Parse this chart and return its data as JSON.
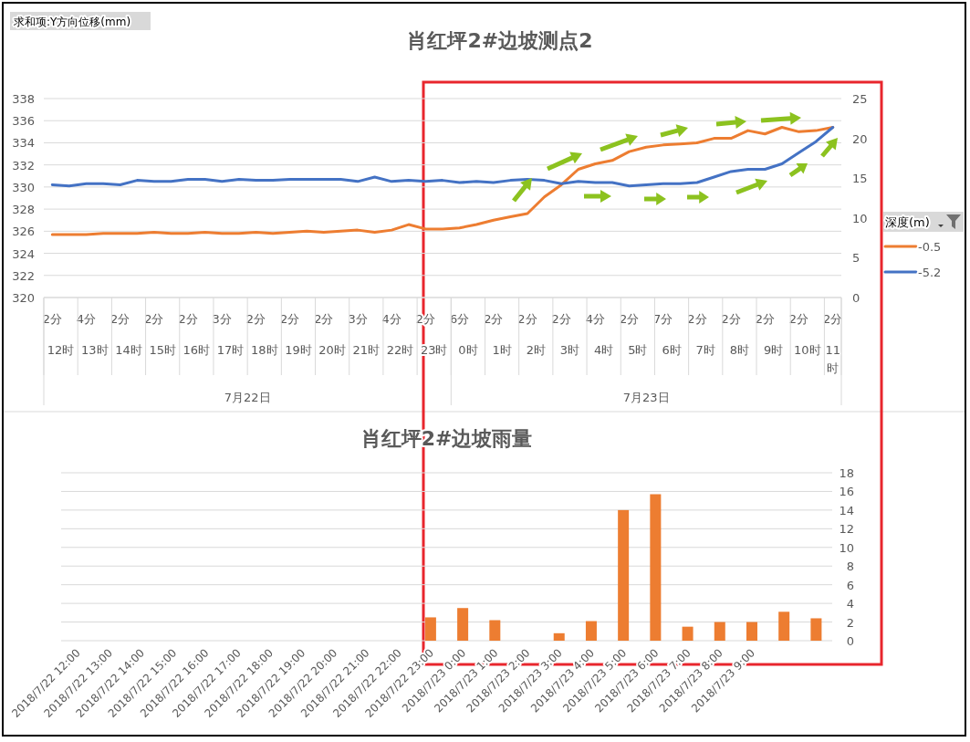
{
  "chart_data": [
    {
      "type": "line",
      "title": "肖红坪2#边坡测点2",
      "ylabel": "求和项:Y方向位移(mm)",
      "legend_title": "深度(m)",
      "legend": "right",
      "grid": "y",
      "categories": [
        "2分",
        null,
        "4分",
        null,
        "2分",
        null,
        "2分",
        null,
        "2分",
        null,
        "3分",
        null,
        "2分",
        null,
        "2分",
        null,
        "2分",
        null,
        "3分",
        null,
        "4分",
        null,
        "2分",
        null,
        "6分",
        null,
        "2分",
        null,
        "2分",
        null,
        "2分",
        null,
        "4分",
        null,
        "2分",
        null,
        "7分",
        null,
        "2分",
        null,
        "2分",
        null,
        "2分",
        null,
        "2分",
        null,
        "2分"
      ],
      "annotations": [
        "12时",
        "13时",
        "14时",
        "15时",
        "16时",
        "17时",
        "18时",
        "19时",
        "20时",
        "21时",
        "22时",
        "23时",
        "0时",
        "1时",
        "2时",
        "3时",
        "4时",
        "5时",
        "6时",
        "7时",
        "8时",
        "9时",
        "10时",
        "11时",
        "7月22日",
        "7月23日"
      ],
      "ylim": [
        320,
        338
      ],
      "yticks": [
        320,
        322,
        324,
        326,
        328,
        330,
        332,
        334,
        336,
        338
      ],
      "y2lim": [
        0,
        25
      ],
      "y2ticks": [
        0,
        5,
        10,
        15,
        20,
        25
      ],
      "series": [
        {
          "name": "-0.5",
          "color": "#ed7d31",
          "values": [
            325.7,
            325.7,
            325.7,
            325.8,
            325.8,
            325.8,
            325.9,
            325.8,
            325.8,
            325.9,
            325.8,
            325.8,
            325.9,
            325.8,
            325.9,
            326.0,
            325.9,
            326.0,
            326.1,
            325.9,
            326.1,
            326.6,
            326.2,
            326.2,
            326.3,
            326.6,
            327.0,
            327.3,
            327.6,
            329.1,
            330.2,
            331.6,
            332.1,
            332.4,
            333.2,
            333.6,
            333.8,
            333.9,
            334.0,
            334.4,
            334.4,
            335.1,
            334.8,
            335.4,
            335.0,
            335.1,
            335.4
          ]
        },
        {
          "name": "-5.2",
          "color": "#4472c4",
          "values": [
            330.2,
            330.1,
            330.3,
            330.3,
            330.2,
            330.6,
            330.5,
            330.5,
            330.7,
            330.7,
            330.5,
            330.7,
            330.6,
            330.6,
            330.7,
            330.7,
            330.7,
            330.7,
            330.5,
            330.9,
            330.5,
            330.6,
            330.5,
            330.6,
            330.4,
            330.5,
            330.4,
            330.6,
            330.7,
            330.6,
            330.3,
            330.5,
            330.4,
            330.4,
            330.1,
            330.2,
            330.3,
            330.3,
            330.4,
            330.9,
            331.4,
            331.6,
            331.6,
            332.1,
            333.1,
            334.1,
            335.4
          ]
        }
      ]
    },
    {
      "type": "bar",
      "title": "肖红坪2#边坡雨量",
      "grid": "y",
      "color": "#ed7d31",
      "categories": [
        "2018/7/22 12:00",
        "2018/7/22 13:00",
        "2018/7/22 14:00",
        "2018/7/22 15:00",
        "2018/7/22 16:00",
        "2018/7/22 17:00",
        "2018/7/22 18:00",
        "2018/7/22 19:00",
        "2018/7/22 20:00",
        "2018/7/22 21:00",
        "2018/7/22 22:00",
        "2018/7/22 23:00",
        "2018/7/23 0:00",
        "2018/7/23 1:00",
        "2018/7/23 2:00",
        "2018/7/23 3:00",
        "2018/7/23 4:00",
        "2018/7/23 5:00",
        "2018/7/23 6:00",
        "2018/7/23 7:00",
        "2018/7/23 8:00",
        "2018/7/23 9:00",
        null,
        null
      ],
      "values": [
        0,
        0,
        0,
        0,
        0,
        0,
        0,
        0,
        0,
        0,
        0,
        2.5,
        3.5,
        2.2,
        0,
        0.8,
        2.1,
        14.0,
        15.7,
        1.5,
        2.0,
        2.0,
        3.1,
        2.4
      ],
      "ylim": [
        0,
        18
      ],
      "yticks": [
        0,
        2,
        4,
        6,
        8,
        10,
        12,
        14,
        16,
        18
      ]
    }
  ]
}
